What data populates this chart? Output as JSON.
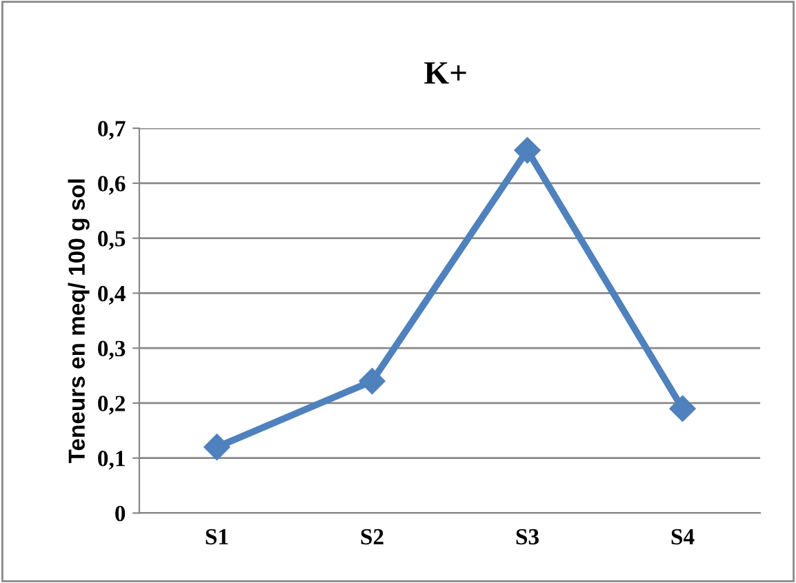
{
  "chart_data": {
    "type": "line",
    "title": "K+",
    "ylabel": "Teneurs en meq/ 100 g sol",
    "categories": [
      "S1",
      "S2",
      "S3",
      "S4"
    ],
    "series": [
      {
        "color": "#4f81bd",
        "values": [
          0.12,
          0.24,
          0.66,
          0.19
        ]
      }
    ],
    "ylim": [
      0,
      0.7
    ],
    "yticks": [
      0,
      {
        "value": 0.1,
        "label": "0,1"
      },
      {
        "value": 0.2,
        "label": "0,2"
      },
      {
        "value": 0.3,
        "label": "0,3"
      },
      {
        "value": 0.4,
        "label": "0,4"
      },
      {
        "value": 0.5,
        "label": "0,5"
      },
      {
        "value": 0.6,
        "label": "0,6"
      },
      {
        "value": 0.7,
        "label": "0,7"
      }
    ],
    "grid": "y",
    "marker": "diamond",
    "line_style": "solid"
  }
}
